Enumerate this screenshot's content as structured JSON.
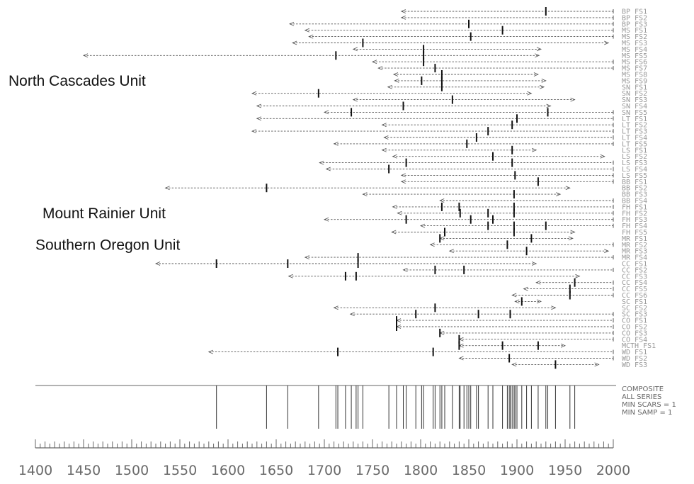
{
  "chart_data": {
    "type": "fire-history",
    "xlim": [
      1400,
      2000
    ],
    "x_ticks": [
      1400,
      1450,
      1500,
      1550,
      1600,
      1650,
      1700,
      1750,
      1800,
      1850,
      1900,
      1950,
      2000
    ],
    "unit_labels": [
      {
        "text": "North Cascades Unit",
        "row": 11
      },
      {
        "text": "Mount Rainier Unit",
        "row": 32
      },
      {
        "text": "Southern Oregon Unit",
        "row": 37
      }
    ],
    "composite_legend": [
      "COMPOSITE",
      "ALL SERIES",
      "MIN SCARS = 1",
      "MIN SAMP = 1"
    ],
    "colors": {
      "series": "#555555",
      "scar": "#111111",
      "axis": "#666666",
      "label_text": "#999999"
    },
    "series": [
      {
        "label": "BP FS1",
        "pith": 1780,
        "bark": 2000,
        "scars": [
          1930
        ]
      },
      {
        "label": "BP FS2",
        "pith": 1780,
        "bark": 2000,
        "scars": []
      },
      {
        "label": "BP FS3",
        "pith": 1664,
        "bark": 2000,
        "scars": [
          1850
        ]
      },
      {
        "label": "MS FS1",
        "pith": 1680,
        "bark": 2000,
        "scars": [
          1885
        ]
      },
      {
        "label": "MS FS2",
        "pith": 1684,
        "bark": 2000,
        "scars": [
          1852
        ]
      },
      {
        "label": "MS FS3",
        "pith": 1667,
        "bark": 1995,
        "scars": [
          1740
        ]
      },
      {
        "label": "MS FS4",
        "pith": 1730,
        "bark": 1925,
        "scars": [
          1803
        ]
      },
      {
        "label": "MS FS5",
        "pith": 1450,
        "bark": 1923,
        "scars": [
          1803,
          1712
        ]
      },
      {
        "label": "MS FS6",
        "pith": 1750,
        "bark": 2000,
        "scars": [
          1803
        ]
      },
      {
        "label": "MS FS7",
        "pith": 1756,
        "bark": 2000,
        "scars": [
          1815
        ]
      },
      {
        "label": "MS FS8",
        "pith": 1772,
        "bark": 1922,
        "scars": [
          1822
        ]
      },
      {
        "label": "MS FS9",
        "pith": 1773,
        "bark": 1930,
        "scars": [
          1801,
          1822
        ]
      },
      {
        "label": "SN FS1",
        "pith": 1766,
        "bark": 1928,
        "scars": [
          1822
        ]
      },
      {
        "label": "SN FS2",
        "pith": 1625,
        "bark": 1915,
        "scars": [
          1694
        ]
      },
      {
        "label": "SN FS3",
        "pith": 1730,
        "bark": 1960,
        "scars": [
          1833
        ]
      },
      {
        "label": "SN FS4",
        "pith": 1630,
        "bark": 1935,
        "scars": [
          1782
        ]
      },
      {
        "label": "SN FS5",
        "pith": 1700,
        "bark": 2000,
        "scars": [
          1728,
          1932
        ]
      },
      {
        "label": "LT FS1",
        "pith": 1630,
        "bark": 2000,
        "scars": [
          1900
        ]
      },
      {
        "label": "LT FS2",
        "pith": 1760,
        "bark": 2000,
        "scars": [
          1895
        ]
      },
      {
        "label": "LT FS3",
        "pith": 1625,
        "bark": 2000,
        "scars": [
          1870
        ]
      },
      {
        "label": "LT FS4",
        "pith": 1762,
        "bark": 2000,
        "scars": [
          1858
        ]
      },
      {
        "label": "LT FS5",
        "pith": 1710,
        "bark": 2000,
        "scars": [
          1848
        ]
      },
      {
        "label": "LS FS1",
        "pith": 1760,
        "bark": 1920,
        "scars": [
          1895
        ]
      },
      {
        "label": "LS FS2",
        "pith": 1771,
        "bark": 1991,
        "scars": [
          1875
        ]
      },
      {
        "label": "LS FS3",
        "pith": 1695,
        "bark": 2000,
        "scars": [
          1785,
          1895
        ]
      },
      {
        "label": "LS FS4",
        "pith": 1702,
        "bark": 2000,
        "scars": [
          1767
        ]
      },
      {
        "label": "LS FS5",
        "pith": 1780,
        "bark": 2000,
        "scars": [
          1898
        ]
      },
      {
        "label": "BB FS1",
        "pith": 1780,
        "bark": 2000,
        "scars": [
          1922
        ]
      },
      {
        "label": "BB FS2",
        "pith": 1535,
        "bark": 1955,
        "scars": [
          1640
        ]
      },
      {
        "label": "BB FS3",
        "pith": 1740,
        "bark": 1945,
        "scars": [
          1897
        ]
      },
      {
        "label": "BB FS4",
        "pith": 1820,
        "bark": 2000,
        "scars": []
      },
      {
        "label": "FH FS1",
        "pith": 1771,
        "bark": 2000,
        "scars": [
          1822,
          1840,
          1897
        ]
      },
      {
        "label": "FH FS2",
        "pith": 1776,
        "bark": 2000,
        "scars": [
          1841,
          1870,
          1897
        ]
      },
      {
        "label": "FH FS3",
        "pith": 1700,
        "bark": 2000,
        "scars": [
          1785,
          1852,
          1875
        ]
      },
      {
        "label": "FH FS4",
        "pith": 1800,
        "bark": 2000,
        "scars": [
          1870,
          1897,
          1930
        ]
      },
      {
        "label": "FH FS5",
        "pith": 1770,
        "bark": 1960,
        "scars": [
          1825,
          1897
        ]
      },
      {
        "label": "MR FS1",
        "pith": 1820,
        "bark": 1958,
        "scars": [
          1820,
          1915
        ]
      },
      {
        "label": "MR FS2",
        "pith": 1810,
        "bark": 2000,
        "scars": [
          1890
        ]
      },
      {
        "label": "MR FS3",
        "pith": 1830,
        "bark": 1995,
        "scars": [
          1910
        ]
      },
      {
        "label": "MR FS4",
        "pith": 1680,
        "bark": 2000,
        "scars": [
          1735
        ]
      },
      {
        "label": "CC FS1",
        "pith": 1525,
        "bark": 1920,
        "scars": [
          1588,
          1662,
          1735
        ]
      },
      {
        "label": "CC FS2",
        "pith": 1782,
        "bark": 2000,
        "scars": [
          1815,
          1845
        ]
      },
      {
        "label": "CC FS3",
        "pith": 1663,
        "bark": 1965,
        "scars": [
          1722,
          1733
        ]
      },
      {
        "label": "CC FS4",
        "pith": 1920,
        "bark": 2000,
        "scars": [
          1960
        ]
      },
      {
        "label": "CC FS5",
        "pith": 1907,
        "bark": 2000,
        "scars": [
          1955
        ]
      },
      {
        "label": "CC FS6",
        "pith": 1895,
        "bark": 2000,
        "scars": [
          1955
        ]
      },
      {
        "label": "SC FS1",
        "pith": 1898,
        "bark": 1925,
        "scars": [
          1905
        ]
      },
      {
        "label": "SC FS2",
        "pith": 1710,
        "bark": 1940,
        "scars": [
          1815
        ]
      },
      {
        "label": "SC FS3",
        "pith": 1727,
        "bark": 2000,
        "scars": [
          1795,
          1860,
          1893
        ]
      },
      {
        "label": "CO FS1",
        "pith": 1775,
        "bark": 2000,
        "scars": [
          1775
        ]
      },
      {
        "label": "CO FS2",
        "pith": 1775,
        "bark": 2000,
        "scars": [
          1775
        ]
      },
      {
        "label": "CO FS3",
        "pith": 1820,
        "bark": 2000,
        "scars": [
          1820
        ]
      },
      {
        "label": "CO FS4",
        "pith": 1840,
        "bark": 2000,
        "scars": [
          1840
        ]
      },
      {
        "label": "MCTH FS1",
        "pith": 1840,
        "bark": 1950,
        "scars": [
          1840,
          1885,
          1922
        ]
      },
      {
        "label": "WD FS1",
        "pith": 1580,
        "bark": 2000,
        "scars": [
          1714,
          1813
        ]
      },
      {
        "label": "WD FS2",
        "pith": 1840,
        "bark": 2000,
        "scars": [
          1892
        ]
      },
      {
        "label": "WD FS3",
        "pith": 1895,
        "bark": 1985,
        "scars": [
          1940
        ]
      }
    ],
    "composite_years": [
      1588,
      1640,
      1662,
      1694,
      1712,
      1714,
      1722,
      1728,
      1733,
      1735,
      1740,
      1767,
      1775,
      1782,
      1785,
      1795,
      1801,
      1803,
      1813,
      1815,
      1820,
      1822,
      1825,
      1833,
      1840,
      1841,
      1845,
      1848,
      1850,
      1852,
      1858,
      1860,
      1870,
      1875,
      1885,
      1890,
      1892,
      1893,
      1895,
      1897,
      1898,
      1900,
      1905,
      1910,
      1915,
      1922,
      1930,
      1932,
      1940,
      1955,
      1960
    ]
  }
}
